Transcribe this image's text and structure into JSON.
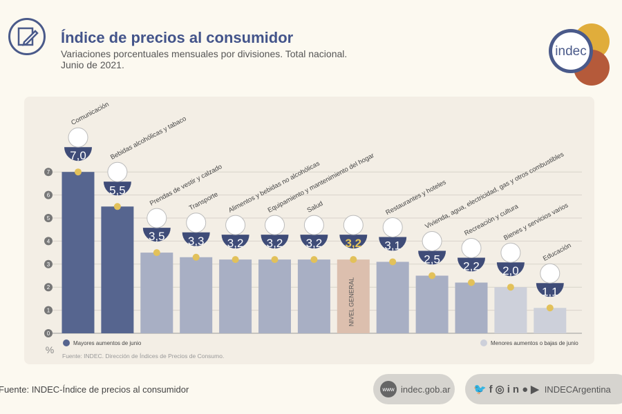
{
  "header": {
    "title": "Índice de precios al consumidor",
    "subtitle": "Variaciones porcentuales mensuales por divisiones. Total nacional.",
    "date": "Junio de 2021.",
    "brand": "indec"
  },
  "chart_data": {
    "type": "bar",
    "categories": [
      "Comunicación",
      "Bebidas alcohólicas y tabaco",
      "Prendas de vestir y calzado",
      "Transporte",
      "Alimentos y bebidas no alcohólicas",
      "Equipamiento y mantenimiento del hogar",
      "Salud",
      "Nivel general",
      "Restaurantes y hoteles",
      "Vivienda, agua, electricidad, gas y otros combustibles",
      "Recreación y cultura",
      "Bienes y servicios varios",
      "Educación"
    ],
    "values": [
      7.0,
      5.5,
      3.5,
      3.3,
      3.2,
      3.2,
      3.2,
      3.2,
      3.1,
      2.5,
      2.2,
      2.0,
      1.1
    ],
    "value_labels": [
      "7,0",
      "5,5",
      "3,5",
      "3,3",
      "3,2",
      "3,2",
      "3,2",
      "3,2",
      "3,1",
      "2,5",
      "2,2",
      "2,0",
      "1,1"
    ],
    "bar_label_nivel": "NIVEL GENERAL",
    "groups": [
      "high",
      "high",
      "mid",
      "mid",
      "mid",
      "mid",
      "mid",
      "general",
      "mid",
      "mid",
      "mid",
      "low",
      "low"
    ],
    "ylim": [
      0,
      7
    ],
    "yticks": [
      "0",
      "1",
      "2",
      "3",
      "4",
      "5",
      "6",
      "7"
    ],
    "ylabel": "%",
    "grid": true,
    "colors": {
      "high": "#56658f",
      "mid": "#a8afc4",
      "low": "#cdd0da",
      "general": "#dcbfae",
      "badge": "#3f4c78",
      "dot": "#e2c15a",
      "highlight": "#e7c65a"
    },
    "legend": {
      "high": "Mayores aumentos de junio",
      "low": "Menores aumentos o bajas de junio"
    },
    "source": "Fuente: INDEC. Dirección de Índices de Precios de Consumo."
  },
  "footer": {
    "source": "Fuente: INDEC-Índice de precios al consumidor",
    "website": "indec.gob.ar",
    "www": "www",
    "social_handle": "INDECArgentina"
  }
}
